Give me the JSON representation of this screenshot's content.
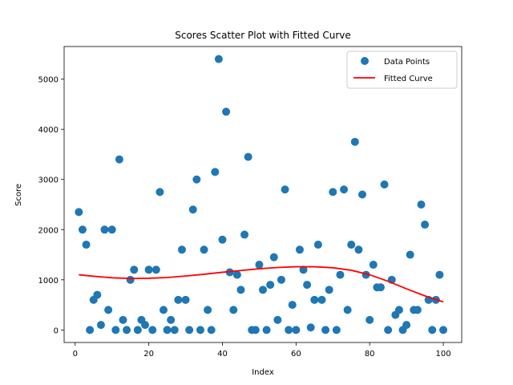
{
  "chart_data": {
    "type": "scatter",
    "title": "Scores Scatter Plot with Fitted Curve",
    "xlabel": "Index",
    "ylabel": "Score",
    "xlim": [
      -3,
      105
    ],
    "ylim": [
      -250,
      5650
    ],
    "xticks": [
      0,
      20,
      40,
      60,
      80,
      100
    ],
    "yticks": [
      0,
      1000,
      2000,
      3000,
      4000,
      5000
    ],
    "grid": false,
    "legend_position": "top-right",
    "colors": {
      "points": "#1f77b4",
      "curve": "#ff0000"
    },
    "series": [
      {
        "name": "Data Points",
        "kind": "scatter",
        "x": [
          1,
          2,
          3,
          4,
          5,
          6,
          7,
          8,
          9,
          10,
          11,
          12,
          13,
          14,
          15,
          16,
          17,
          18,
          19,
          20,
          21,
          22,
          23,
          24,
          25,
          26,
          27,
          28,
          29,
          30,
          31,
          32,
          33,
          34,
          35,
          36,
          37,
          38,
          39,
          40,
          41,
          42,
          43,
          44,
          45,
          46,
          47,
          48,
          49,
          50,
          51,
          52,
          53,
          54,
          55,
          56,
          57,
          58,
          59,
          60,
          61,
          62,
          63,
          64,
          65,
          66,
          67,
          68,
          69,
          70,
          71,
          72,
          73,
          74,
          75,
          76,
          77,
          78,
          79,
          80,
          81,
          82,
          83,
          84,
          85,
          86,
          87,
          88,
          89,
          90,
          91,
          92,
          93,
          94,
          95,
          96,
          97,
          98,
          99,
          100
        ],
        "y": [
          2350,
          2000,
          1700,
          0,
          600,
          700,
          100,
          2000,
          400,
          2000,
          0,
          3400,
          200,
          0,
          1000,
          1200,
          0,
          200,
          100,
          1200,
          0,
          1200,
          2750,
          400,
          0,
          200,
          0,
          600,
          1600,
          600,
          0,
          2400,
          3000,
          0,
          1600,
          400,
          0,
          3150,
          5400,
          1800,
          4350,
          1150,
          400,
          1100,
          800,
          1900,
          3450,
          0,
          0,
          1300,
          800,
          0,
          900,
          1450,
          200,
          1000,
          2800,
          0,
          500,
          0,
          1600,
          1200,
          900,
          50,
          600,
          1700,
          600,
          0,
          800,
          2750,
          0,
          1100,
          2800,
          400,
          1700,
          3750,
          1600,
          2700,
          1100,
          200,
          1300,
          850,
          850,
          2900,
          0,
          1000,
          300,
          400,
          0,
          100,
          1500,
          400,
          400,
          2500,
          2100,
          600,
          0,
          600,
          1100,
          0
        ]
      },
      {
        "name": "Fitted Curve",
        "kind": "line",
        "x": [
          1,
          5,
          10,
          15,
          20,
          25,
          30,
          35,
          40,
          45,
          50,
          55,
          60,
          65,
          70,
          75,
          80,
          85,
          90,
          95,
          100
        ],
        "y": [
          1100,
          1070,
          1040,
          1025,
          1030,
          1045,
          1075,
          1110,
          1150,
          1185,
          1220,
          1245,
          1260,
          1260,
          1240,
          1190,
          1100,
          970,
          820,
          680,
          560
        ]
      }
    ]
  }
}
